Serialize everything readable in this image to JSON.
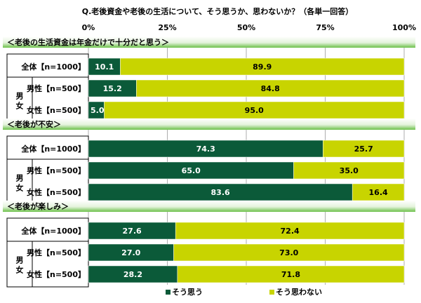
{
  "chart_data": {
    "type": "bar",
    "orientation": "horizontal",
    "stacked": true,
    "percent_stacked": true,
    "title": "Q.老後資金や老後の生活について、そう思うか、思わないか？（各単一回答）",
    "xlim": [
      0,
      100
    ],
    "x_ticks": [
      "0%",
      "25%",
      "50%",
      "75%",
      "100%"
    ],
    "group_side_label": "男女",
    "legend_position": "bottom",
    "series": [
      {
        "name": "そう思う",
        "color": "#0b5a39"
      },
      {
        "name": "そう思わない",
        "color": "#c8d400"
      }
    ],
    "sections": [
      {
        "title": "＜老後の生活資金は年金だけで十分だと思う＞",
        "rows": [
          {
            "label": "全体【n=1000】",
            "values": [
              10.1,
              89.9
            ],
            "labels": [
              "10.1",
              "89.9"
            ]
          },
          {
            "label": "男性【n=500】",
            "values": [
              15.2,
              84.8
            ],
            "labels": [
              "15.2",
              "84.8"
            ]
          },
          {
            "label": "女性【n=500】",
            "values": [
              5.0,
              95.0
            ],
            "labels": [
              "5.0",
              "95.0"
            ]
          }
        ]
      },
      {
        "title": "＜老後が不安＞",
        "rows": [
          {
            "label": "全体【n=1000】",
            "values": [
              74.3,
              25.7
            ],
            "labels": [
              "74.3",
              "25.7"
            ]
          },
          {
            "label": "男性【n=500】",
            "values": [
              65.0,
              35.0
            ],
            "labels": [
              "65.0",
              "35.0"
            ]
          },
          {
            "label": "女性【n=500】",
            "values": [
              83.6,
              16.4
            ],
            "labels": [
              "83.6",
              "16.4"
            ]
          }
        ]
      },
      {
        "title": "＜老後が楽しみ＞",
        "rows": [
          {
            "label": "全体【n=1000】",
            "values": [
              27.6,
              72.4
            ],
            "labels": [
              "27.6",
              "72.4"
            ]
          },
          {
            "label": "男性【n=500】",
            "values": [
              27.0,
              73.0
            ],
            "labels": [
              "27.0",
              "73.0"
            ]
          },
          {
            "label": "女性【n=500】",
            "values": [
              28.2,
              71.8
            ],
            "labels": [
              "28.2",
              "71.8"
            ]
          }
        ]
      }
    ]
  }
}
